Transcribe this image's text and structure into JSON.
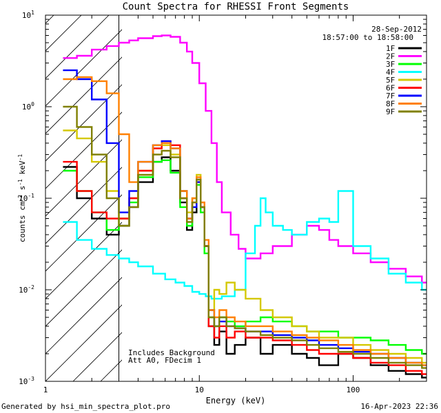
{
  "chart_data": {
    "type": "line",
    "title": "Count Spectra for RHESSI Front Segments",
    "xlabel": "Energy (keV)",
    "ylabel_parts": [
      "counts cm",
      "-2",
      " s",
      "-1",
      " keV",
      "-1"
    ],
    "x_scale": "log",
    "y_scale": "log",
    "xlim": [
      1,
      300
    ],
    "ylim": [
      0.001,
      10
    ],
    "x_ticks": [
      {
        "value": 1,
        "label": "1"
      },
      {
        "value": 10,
        "label": "10"
      },
      {
        "value": 100,
        "label": "100"
      }
    ],
    "y_ticks": [
      {
        "value": 0.001,
        "base": "10",
        "exp": "-3"
      },
      {
        "value": 0.01,
        "base": "10",
        "exp": "-2"
      },
      {
        "value": 0.1,
        "base": "10",
        "exp": "-1"
      },
      {
        "value": 1,
        "base": "10",
        "exp": "0"
      },
      {
        "value": 10,
        "base": "10",
        "exp": "1"
      }
    ],
    "hatched_region": {
      "x_from": 1,
      "x_to": 3
    },
    "date": "28-Sep-2012",
    "time_range": "18:57:00 to 18:58:00",
    "annotations": [
      "Includes Background",
      "Att A0, FDecim 1"
    ],
    "series": [
      {
        "name": "1F",
        "color": "#000000",
        "x": [
          1.3,
          1.6,
          2,
          2.5,
          3,
          3.5,
          4,
          5,
          5.7,
          6.5,
          7.5,
          8.3,
          9,
          9.6,
          10.2,
          10.8,
          11.5,
          12.5,
          13.5,
          15,
          17,
          20,
          25,
          30,
          40,
          50,
          60,
          80,
          100,
          130,
          170,
          220,
          280
        ],
        "y": [
          0.22,
          0.1,
          0.06,
          0.04,
          0.05,
          0.08,
          0.15,
          0.25,
          0.28,
          0.2,
          0.09,
          0.045,
          0.07,
          0.16,
          0.08,
          0.03,
          0.004,
          0.0025,
          0.0035,
          0.002,
          0.0025,
          0.003,
          0.002,
          0.0025,
          0.002,
          0.0018,
          0.0015,
          0.002,
          0.0018,
          0.0015,
          0.0013,
          0.0012,
          0.0011
        ]
      },
      {
        "name": "2F",
        "color": "#ff00ff",
        "x": [
          1.3,
          1.6,
          2,
          2.5,
          3,
          3.5,
          4,
          5,
          5.7,
          6.5,
          7.5,
          8.3,
          9,
          10,
          11,
          12,
          13,
          14,
          16,
          18,
          20,
          25,
          30,
          40,
          50,
          60,
          70,
          80,
          100,
          130,
          170,
          220,
          280
        ],
        "y": [
          3.4,
          3.6,
          4.2,
          4.6,
          5.0,
          5.3,
          5.6,
          5.9,
          6.0,
          5.8,
          5.0,
          4.0,
          3.0,
          1.8,
          0.9,
          0.4,
          0.15,
          0.07,
          0.04,
          0.028,
          0.022,
          0.025,
          0.03,
          0.04,
          0.05,
          0.045,
          0.035,
          0.03,
          0.025,
          0.02,
          0.017,
          0.014,
          0.012
        ]
      },
      {
        "name": "3F",
        "color": "#00ff00",
        "x": [
          1.3,
          1.6,
          2,
          2.5,
          3,
          3.5,
          4,
          5,
          5.7,
          6.5,
          7.5,
          8.3,
          9,
          9.6,
          10.2,
          10.8,
          11.5,
          12.5,
          13.5,
          15,
          17,
          20,
          25,
          30,
          40,
          50,
          60,
          80,
          100,
          130,
          170,
          220,
          280
        ],
        "y": [
          0.2,
          0.12,
          0.07,
          0.045,
          0.06,
          0.09,
          0.17,
          0.25,
          0.26,
          0.19,
          0.08,
          0.05,
          0.08,
          0.14,
          0.07,
          0.025,
          0.005,
          0.004,
          0.005,
          0.0045,
          0.004,
          0.0045,
          0.005,
          0.0045,
          0.004,
          0.0035,
          0.0035,
          0.003,
          0.003,
          0.0028,
          0.0025,
          0.0022,
          0.002
        ]
      },
      {
        "name": "4F",
        "color": "#00ffff",
        "x": [
          1.3,
          1.6,
          2,
          2.5,
          3,
          3.5,
          4,
          5,
          6,
          7,
          8,
          9,
          10,
          11,
          12,
          14,
          17,
          20,
          23,
          25,
          27,
          30,
          35,
          40,
          50,
          60,
          70,
          80,
          100,
          130,
          170,
          220,
          280
        ],
        "y": [
          0.055,
          0.035,
          0.028,
          0.024,
          0.022,
          0.02,
          0.018,
          0.015,
          0.013,
          0.012,
          0.011,
          0.0095,
          0.009,
          0.0085,
          0.008,
          0.0085,
          0.01,
          0.025,
          0.05,
          0.1,
          0.07,
          0.05,
          0.045,
          0.04,
          0.055,
          0.06,
          0.055,
          0.12,
          0.03,
          0.022,
          0.015,
          0.012,
          0.01
        ]
      },
      {
        "name": "5F",
        "color": "#d4c800",
        "x": [
          1.3,
          1.6,
          2,
          2.5,
          3,
          3.5,
          4,
          5,
          5.7,
          6.5,
          7.5,
          8.3,
          9,
          9.6,
          10.2,
          10.8,
          11.5,
          12.5,
          13.5,
          15,
          17,
          20,
          25,
          30,
          40,
          50,
          60,
          80,
          100,
          130,
          170,
          220,
          280
        ],
        "y": [
          0.55,
          0.45,
          0.25,
          0.12,
          0.06,
          0.1,
          0.2,
          0.35,
          0.38,
          0.3,
          0.12,
          0.07,
          0.1,
          0.18,
          0.09,
          0.03,
          0.006,
          0.01,
          0.009,
          0.012,
          0.01,
          0.008,
          0.006,
          0.005,
          0.004,
          0.0035,
          0.003,
          0.003,
          0.0025,
          0.0022,
          0.002,
          0.0018,
          0.0016
        ]
      },
      {
        "name": "6F",
        "color": "#ff0000",
        "x": [
          1.3,
          1.6,
          2,
          2.5,
          3,
          3.5,
          4,
          5,
          5.7,
          6.5,
          7.5,
          8.3,
          9,
          9.6,
          10.2,
          10.8,
          11.5,
          12.5,
          13.5,
          15,
          17,
          20,
          25,
          30,
          40,
          50,
          60,
          80,
          100,
          130,
          170,
          220,
          280
        ],
        "y": [
          0.25,
          0.12,
          0.07,
          0.06,
          0.06,
          0.1,
          0.2,
          0.35,
          0.42,
          0.38,
          0.1,
          0.06,
          0.09,
          0.15,
          0.08,
          0.03,
          0.004,
          0.003,
          0.004,
          0.003,
          0.0035,
          0.003,
          0.003,
          0.0028,
          0.0025,
          0.0022,
          0.002,
          0.002,
          0.0018,
          0.0016,
          0.0015,
          0.0013,
          0.0012
        ]
      },
      {
        "name": "7F",
        "color": "#0000ff",
        "x": [
          1.3,
          1.6,
          2,
          2.5,
          3,
          3.5,
          4,
          5,
          5.7,
          6.5,
          7.5,
          8.3,
          9,
          9.6,
          10.2,
          10.8,
          11.5,
          12.5,
          13.5,
          15,
          17,
          20,
          25,
          30,
          40,
          50,
          60,
          80,
          100,
          130,
          170,
          220,
          280
        ],
        "y": [
          2.5,
          2.0,
          1.2,
          0.4,
          0.07,
          0.12,
          0.25,
          0.38,
          0.42,
          0.35,
          0.12,
          0.06,
          0.08,
          0.15,
          0.08,
          0.03,
          0.006,
          0.004,
          0.0045,
          0.004,
          0.0038,
          0.0035,
          0.0035,
          0.0032,
          0.003,
          0.0028,
          0.0025,
          0.0023,
          0.0021,
          0.002,
          0.0018,
          0.0016,
          0.0015
        ]
      },
      {
        "name": "8F",
        "color": "#ff8000",
        "x": [
          1.3,
          1.6,
          2,
          2.5,
          3,
          3.5,
          4,
          5,
          5.7,
          6.5,
          7.5,
          8.3,
          9,
          9.6,
          10.2,
          10.8,
          11.5,
          12.5,
          13.5,
          15,
          17,
          20,
          25,
          30,
          40,
          50,
          60,
          80,
          100,
          130,
          170,
          220,
          280
        ],
        "y": [
          2.0,
          2.1,
          1.9,
          1.4,
          0.5,
          0.15,
          0.25,
          0.38,
          0.4,
          0.35,
          0.12,
          0.06,
          0.1,
          0.17,
          0.09,
          0.035,
          0.006,
          0.005,
          0.006,
          0.005,
          0.0045,
          0.004,
          0.004,
          0.0035,
          0.0032,
          0.003,
          0.0028,
          0.0025,
          0.0022,
          0.002,
          0.0018,
          0.0016,
          0.0015
        ]
      },
      {
        "name": "9F",
        "color": "#808000",
        "x": [
          1.3,
          1.6,
          2,
          2.5,
          3,
          3.5,
          4,
          5,
          5.7,
          6.5,
          7.5,
          8.3,
          9,
          9.6,
          10.2,
          10.8,
          11.5,
          12.5,
          13.5,
          15,
          17,
          20,
          25,
          30,
          40,
          50,
          60,
          80,
          100,
          130,
          170,
          220,
          280
        ],
        "y": [
          1.0,
          0.6,
          0.3,
          0.1,
          0.05,
          0.08,
          0.18,
          0.3,
          0.33,
          0.28,
          0.1,
          0.055,
          0.09,
          0.16,
          0.08,
          0.03,
          0.005,
          0.004,
          0.005,
          0.004,
          0.0038,
          0.0035,
          0.0032,
          0.003,
          0.0028,
          0.0025,
          0.0023,
          0.0021,
          0.002,
          0.0018,
          0.0016,
          0.0015,
          0.0014
        ]
      }
    ]
  },
  "footer": {
    "left": "Generated by hsi_min_spectra_plot.pro",
    "right": "16-Apr-2023 22:36"
  }
}
